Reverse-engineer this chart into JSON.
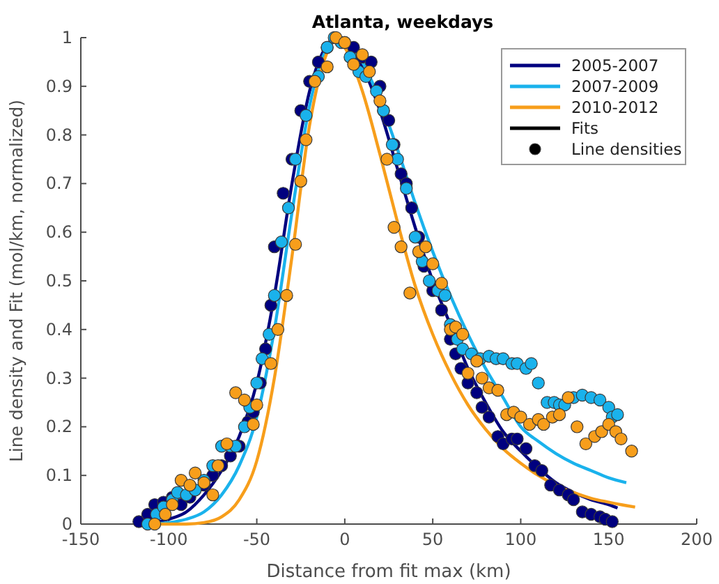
{
  "chart_data": {
    "type": "scatter",
    "title": "Atlanta, weekdays",
    "xlabel": "Distance from fit max (km)",
    "ylabel": "Line density and Fit (mol/km, normalized)",
    "xlim": [
      -150,
      200
    ],
    "ylim": [
      0,
      1
    ],
    "xticks": [
      -150,
      -100,
      -50,
      0,
      50,
      100,
      150,
      200
    ],
    "yticks": [
      0,
      0.1,
      0.2,
      0.3,
      0.4,
      0.5,
      0.6,
      0.7,
      0.8,
      0.9,
      1
    ],
    "grid": false,
    "legend": "top right",
    "series": [
      {
        "type": "scatter",
        "marker": "circle",
        "color": "#00007f",
        "x": [
          -117,
          -112,
          -108,
          -103,
          -98,
          -93,
          -88,
          -80,
          -75,
          -70,
          -65,
          -60,
          -55,
          -52,
          -48,
          -45,
          -42,
          -40,
          -35,
          -30,
          -25,
          -20,
          -15,
          -10,
          0,
          5,
          10,
          15,
          20,
          22,
          25,
          28,
          32,
          35,
          38,
          42,
          45,
          50,
          55,
          60,
          63,
          66,
          70,
          75,
          78,
          82,
          87,
          90,
          95,
          98,
          103,
          108,
          112,
          117,
          122,
          127,
          130,
          135,
          140,
          145,
          148,
          152
        ],
        "values": [
          0.005,
          0.02,
          0.04,
          0.045,
          0.055,
          0.04,
          0.055,
          0.08,
          0.1,
          0.12,
          0.14,
          0.16,
          0.21,
          0.23,
          0.29,
          0.36,
          0.45,
          0.57,
          0.68,
          0.75,
          0.85,
          0.91,
          0.95,
          0.98,
          0.99,
          0.98,
          0.96,
          0.95,
          0.9,
          0.85,
          0.83,
          0.78,
          0.72,
          0.7,
          0.65,
          0.59,
          0.53,
          0.48,
          0.44,
          0.38,
          0.35,
          0.32,
          0.29,
          0.27,
          0.24,
          0.22,
          0.18,
          0.165,
          0.175,
          0.175,
          0.155,
          0.12,
          0.11,
          0.08,
          0.07,
          0.06,
          0.05,
          0.025,
          0.02,
          0.015,
          0.01,
          0.005
        ]
      },
      {
        "type": "scatter",
        "marker": "circle",
        "color": "#1ab2ec",
        "x": [
          -112,
          -107,
          -103,
          -98,
          -95,
          -90,
          -85,
          -80,
          -75,
          -70,
          -65,
          -62,
          -57,
          -54,
          -50,
          -47,
          -43,
          -40,
          -36,
          -32,
          -28,
          -22,
          -15,
          -10,
          -6,
          -2,
          3,
          8,
          12,
          18,
          22,
          27,
          30,
          35,
          40,
          44,
          48,
          53,
          57,
          60,
          64,
          67,
          72,
          77,
          82,
          86,
          90,
          95,
          98,
          103,
          106,
          110,
          115,
          119,
          122,
          125,
          130,
          135,
          140,
          145,
          150,
          152,
          155
        ],
        "values": [
          0,
          0.02,
          0.035,
          0.05,
          0.065,
          0.06,
          0.07,
          0.09,
          0.12,
          0.16,
          0.16,
          0.16,
          0.2,
          0.24,
          0.29,
          0.34,
          0.39,
          0.47,
          0.58,
          0.65,
          0.75,
          0.84,
          0.92,
          0.98,
          1,
          0.99,
          0.96,
          0.93,
          0.92,
          0.89,
          0.85,
          0.78,
          0.75,
          0.69,
          0.59,
          0.54,
          0.5,
          0.48,
          0.47,
          0.41,
          0.38,
          0.36,
          0.35,
          0.34,
          0.345,
          0.34,
          0.34,
          0.33,
          0.33,
          0.32,
          0.33,
          0.29,
          0.25,
          0.25,
          0.245,
          0.245,
          0.26,
          0.265,
          0.26,
          0.255,
          0.24,
          0.22,
          0.225
        ]
      },
      {
        "type": "scatter",
        "marker": "circle",
        "color": "#f79e1b",
        "x": [
          -108,
          -102,
          -98,
          -93,
          -88,
          -85,
          -80,
          -75,
          -72,
          -67,
          -62,
          -57,
          -52,
          -50,
          -42,
          -38,
          -33,
          -28,
          -25,
          -22,
          -17,
          -10,
          -5,
          0,
          5,
          10,
          14,
          20,
          24,
          28,
          32,
          37,
          42,
          46,
          50,
          55,
          60,
          63,
          67,
          70,
          75,
          78,
          82,
          87,
          92,
          96,
          100,
          105,
          110,
          113,
          118,
          122,
          127,
          132,
          137,
          142,
          146,
          150,
          154,
          157,
          163
        ],
        "values": [
          0,
          0.02,
          0.04,
          0.09,
          0.08,
          0.105,
          0.085,
          0.06,
          0.12,
          0.165,
          0.27,
          0.255,
          0.205,
          0.245,
          0.33,
          0.4,
          0.47,
          0.575,
          0.705,
          0.79,
          0.91,
          0.94,
          1,
          0.99,
          0.945,
          0.965,
          0.93,
          0.87,
          0.75,
          0.61,
          0.57,
          0.475,
          0.56,
          0.57,
          0.535,
          0.495,
          0.4,
          0.405,
          0.39,
          0.31,
          0.335,
          0.3,
          0.28,
          0.275,
          0.225,
          0.23,
          0.22,
          0.205,
          0.215,
          0.205,
          0.22,
          0.225,
          0.26,
          0.2,
          0.165,
          0.18,
          0.19,
          0.205,
          0.19,
          0.175,
          0.15
        ]
      },
      {
        "type": "line",
        "name": "2005-2007",
        "color": "#00007f",
        "x": [
          -115,
          -110,
          -100,
          -90,
          -80,
          -70,
          -60,
          -50,
          -40,
          -30,
          -20,
          -10,
          -5,
          0,
          10,
          20,
          30,
          40,
          50,
          60,
          70,
          80,
          90,
          100,
          110,
          120,
          130,
          140,
          150,
          155
        ],
        "values": [
          0.002,
          0.003,
          0.01,
          0.025,
          0.06,
          0.11,
          0.18,
          0.29,
          0.47,
          0.7,
          0.89,
          0.985,
          1,
          0.99,
          0.94,
          0.85,
          0.73,
          0.61,
          0.5,
          0.41,
          0.32,
          0.25,
          0.19,
          0.15,
          0.115,
          0.085,
          0.065,
          0.05,
          0.04,
          0.033
        ]
      },
      {
        "type": "line",
        "name": "2007-2009",
        "color": "#1ab2ec",
        "x": [
          -110,
          -100,
          -90,
          -80,
          -70,
          -60,
          -50,
          -40,
          -30,
          -20,
          -10,
          -5,
          0,
          10,
          20,
          30,
          40,
          50,
          60,
          70,
          80,
          90,
          100,
          110,
          120,
          130,
          140,
          150,
          160
        ],
        "values": [
          0,
          0.003,
          0.01,
          0.025,
          0.06,
          0.12,
          0.22,
          0.4,
          0.64,
          0.86,
          0.98,
          1,
          0.99,
          0.95,
          0.87,
          0.77,
          0.66,
          0.56,
          0.47,
          0.39,
          0.32,
          0.26,
          0.2,
          0.17,
          0.145,
          0.125,
          0.11,
          0.095,
          0.085
        ]
      },
      {
        "type": "line",
        "name": "2010-2012",
        "color": "#f79e1b",
        "x": [
          -105,
          -90,
          -80,
          -70,
          -60,
          -50,
          -40,
          -30,
          -20,
          -10,
          -5,
          0,
          10,
          20,
          30,
          40,
          50,
          60,
          70,
          80,
          90,
          100,
          110,
          120,
          130,
          140,
          150,
          160,
          165
        ],
        "values": [
          0,
          0,
          0.003,
          0.015,
          0.05,
          0.13,
          0.3,
          0.55,
          0.82,
          0.97,
          1,
          0.98,
          0.89,
          0.76,
          0.62,
          0.49,
          0.39,
          0.31,
          0.245,
          0.195,
          0.155,
          0.125,
          0.1,
          0.08,
          0.065,
          0.053,
          0.045,
          0.038,
          0.035
        ]
      },
      {
        "type": "line",
        "name": "Fits",
        "color": "#000000"
      },
      {
        "type": "scatter",
        "marker": "circle",
        "name": "Line densities",
        "color": "#000000"
      }
    ]
  }
}
